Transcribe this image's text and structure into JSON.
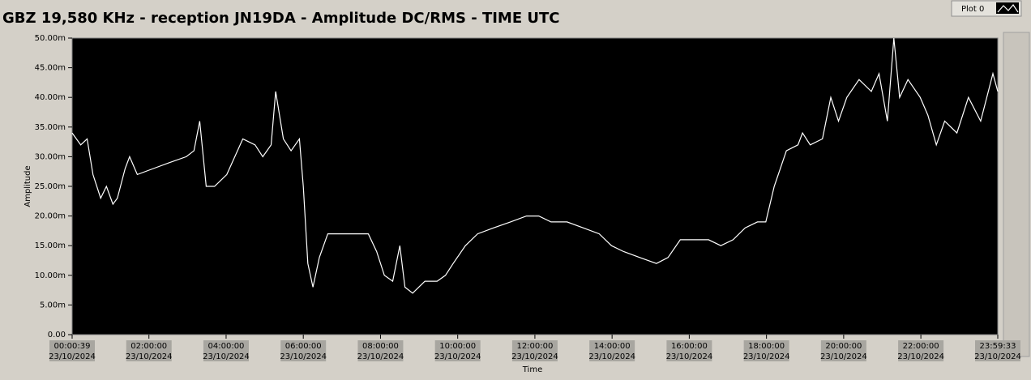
{
  "chart_data": {
    "type": "line",
    "title": "GBZ  19,580 KHz - reception JN19DA -  Amplitude DC/RMS   - TIME UTC",
    "x_label": "Time",
    "y_label": "Amplitude",
    "x_date": "23/10/2024",
    "legend": "top-right",
    "x": [
      "00:00:39",
      "00:14:00",
      "00:24:00",
      "00:33:00",
      "00:45:00",
      "00:54:00",
      "01:04:00",
      "01:11:00",
      "01:23:00",
      "01:30:00",
      "01:42:00",
      "02:07:00",
      "02:32:00",
      "02:58:00",
      "03:10:00",
      "03:19:00",
      "03:29:00",
      "03:42:00",
      "04:01:00",
      "04:26:00",
      "04:45:00",
      "04:57:00",
      "05:10:00",
      "05:17:00",
      "05:29:00",
      "05:41:00",
      "05:54:00",
      "06:00:00",
      "06:07:00",
      "06:15:00",
      "06:25:00",
      "06:38:00",
      "06:57:00",
      "07:22:00",
      "07:41:00",
      "07:54:00",
      "08:06:00",
      "08:19:00",
      "08:30:00",
      "08:38:00",
      "08:50:00",
      "09:09:00",
      "09:28:00",
      "09:41:00",
      "09:53:00",
      "10:12:00",
      "10:31:00",
      "10:56:00",
      "11:22:00",
      "11:47:00",
      "12:06:00",
      "12:25:00",
      "12:50:00",
      "13:15:00",
      "13:40:00",
      "13:59:00",
      "14:18:00",
      "14:43:00",
      "15:09:00",
      "15:27:00",
      "15:46:00",
      "16:05:00",
      "16:30:00",
      "16:49:00",
      "17:08:00",
      "17:27:00",
      "17:46:00",
      "17:59:00",
      "18:12:00",
      "18:31:00",
      "18:49:00",
      "18:56:00",
      "19:08:00",
      "19:27:00",
      "19:40:00",
      "19:52:00",
      "20:05:00",
      "20:24:00",
      "20:43:00",
      "20:55:00",
      "21:08:00",
      "21:18:00",
      "21:27:00",
      "21:40:00",
      "21:59:00",
      "22:11:00",
      "22:24:00",
      "22:37:00",
      "22:56:00",
      "23:14:00",
      "23:33:00",
      "23:52:00",
      "23:59:33"
    ],
    "series": [
      {
        "name": "Plot 0",
        "color": "#ffffff",
        "values": [
          34,
          32,
          33,
          27,
          23,
          25,
          22,
          23,
          28,
          30,
          27,
          28,
          29,
          30,
          31,
          36,
          25,
          25,
          27,
          33,
          32,
          30,
          32,
          41,
          33,
          31,
          33,
          25,
          12,
          8,
          13,
          17,
          17,
          17,
          17,
          14,
          10,
          9,
          15,
          8,
          7,
          9,
          9,
          10,
          12,
          15,
          17,
          18,
          19,
          20,
          20,
          19,
          19,
          18,
          17,
          15,
          14,
          13,
          12,
          13,
          16,
          16,
          16,
          15,
          16,
          18,
          19,
          19,
          25,
          31,
          32,
          34,
          32,
          33,
          40,
          36,
          40,
          43,
          41,
          44,
          36,
          50,
          40,
          43,
          40,
          37,
          32,
          36,
          34,
          40,
          36,
          44,
          41
        ]
      }
    ],
    "xlim": [
      "00:00:39",
      "23:59:33"
    ],
    "xticks": [
      "00:00:39",
      "02:00:00",
      "04:00:00",
      "06:00:00",
      "08:00:00",
      "10:00:00",
      "12:00:00",
      "14:00:00",
      "16:00:00",
      "18:00:00",
      "20:00:00",
      "22:00:00",
      "23:59:33"
    ],
    "ylim": [
      0,
      50
    ],
    "yticks": [
      {
        "value": 0,
        "label": "0.00"
      },
      {
        "value": 5,
        "label": "5.00m"
      },
      {
        "value": 10,
        "label": "10.00m"
      },
      {
        "value": 15,
        "label": "15.00m"
      },
      {
        "value": 20,
        "label": "20.00m"
      },
      {
        "value": 25,
        "label": "25.00m"
      },
      {
        "value": 30,
        "label": "30.00m"
      },
      {
        "value": 35,
        "label": "35.00m"
      },
      {
        "value": 40,
        "label": "40.00m"
      },
      {
        "value": 45,
        "label": "45.00m"
      },
      {
        "value": 50,
        "label": "50.00m"
      }
    ],
    "plot_background": "#000000"
  }
}
